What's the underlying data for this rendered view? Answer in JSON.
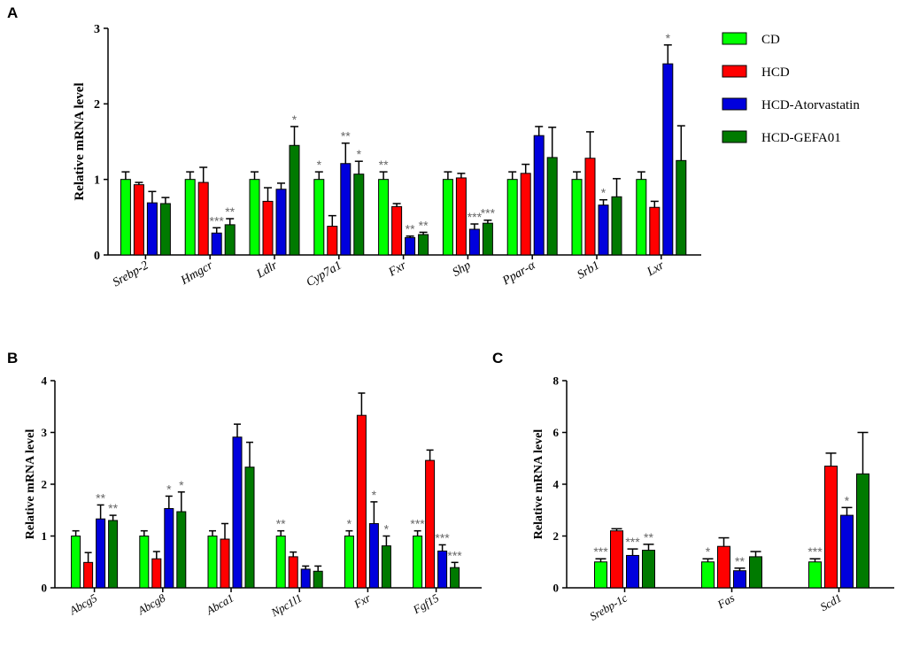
{
  "colors": {
    "CD": "#00ff00",
    "HCD": "#ff0000",
    "HCD-Atorvastatin": "#0000dd",
    "HCD-GEFA01": "#007a00"
  },
  "legend": {
    "items": [
      {
        "label": "CD",
        "color": "#00ff00"
      },
      {
        "label": "HCD",
        "color": "#ff0000"
      },
      {
        "label": "HCD-Atorvastatin",
        "color": "#0000dd"
      },
      {
        "label": "HCD-GEFA01",
        "color": "#007a00"
      }
    ]
  },
  "chart_data": [
    {
      "panel": "A",
      "type": "bar",
      "title": "",
      "ylabel": "Relative mRNA level",
      "xlabel": "",
      "ylim": [
        0,
        3
      ],
      "yticks": [
        0,
        1,
        2,
        3
      ],
      "categories": [
        "Srebp-2",
        "Hmgcr",
        "Ldlr",
        "Cyp7a1",
        "Fxr",
        "Shp",
        "Ppar-α",
        "Srb1",
        "Lxr"
      ],
      "series": [
        {
          "name": "CD",
          "values": [
            1.0,
            1.0,
            1.0,
            1.0,
            1.0,
            1.0,
            1.0,
            1.0,
            1.0
          ],
          "errors": [
            0.1,
            0.1,
            0.1,
            0.1,
            0.1,
            0.1,
            0.1,
            0.1,
            0.1
          ],
          "sig": [
            "",
            "",
            "",
            "*",
            "**",
            "",
            "",
            "",
            ""
          ]
        },
        {
          "name": "HCD",
          "values": [
            0.93,
            0.96,
            0.71,
            0.38,
            0.64,
            1.02,
            1.08,
            1.28,
            0.63
          ],
          "errors": [
            0.03,
            0.2,
            0.18,
            0.14,
            0.04,
            0.06,
            0.12,
            0.35,
            0.08
          ],
          "sig": [
            "",
            "",
            "",
            "",
            "",
            "",
            "",
            "",
            ""
          ]
        },
        {
          "name": "HCD-Atorvastatin",
          "values": [
            0.69,
            0.29,
            0.87,
            1.21,
            0.23,
            0.34,
            1.58,
            0.66,
            2.53
          ],
          "errors": [
            0.15,
            0.07,
            0.08,
            0.27,
            0.02,
            0.07,
            0.12,
            0.07,
            0.25
          ],
          "sig": [
            "",
            "***",
            "",
            "**",
            "**",
            "***",
            "",
            "*",
            "*"
          ]
        },
        {
          "name": "HCD-GEFA01",
          "values": [
            0.68,
            0.4,
            1.45,
            1.07,
            0.27,
            0.42,
            1.29,
            0.77,
            1.25
          ],
          "errors": [
            0.08,
            0.08,
            0.25,
            0.17,
            0.03,
            0.04,
            0.4,
            0.24,
            0.46
          ],
          "sig": [
            "",
            "**",
            "*",
            "*",
            "**",
            "***",
            "",
            "",
            ""
          ]
        }
      ]
    },
    {
      "panel": "B",
      "type": "bar",
      "title": "",
      "ylabel": "Relative mRNA level",
      "xlabel": "",
      "ylim": [
        0,
        4
      ],
      "yticks": [
        0,
        1,
        2,
        3,
        4
      ],
      "categories": [
        "Abcg5",
        "Abcg8",
        "Abca1",
        "Npc1l1",
        "Fxr",
        "Fgf15"
      ],
      "series": [
        {
          "name": "CD",
          "values": [
            1.0,
            1.0,
            1.0,
            1.0,
            1.0,
            1.0
          ],
          "errors": [
            0.1,
            0.1,
            0.1,
            0.1,
            0.1,
            0.1
          ],
          "sig": [
            "",
            "",
            "",
            "**",
            "*",
            "***"
          ]
        },
        {
          "name": "HCD",
          "values": [
            0.49,
            0.56,
            0.94,
            0.6,
            3.33,
            2.46
          ],
          "errors": [
            0.19,
            0.14,
            0.3,
            0.09,
            0.43,
            0.2
          ],
          "sig": [
            "",
            "",
            "",
            "",
            "",
            ""
          ]
        },
        {
          "name": "HCD-Atorvastatin",
          "values": [
            1.33,
            1.53,
            2.91,
            0.36,
            1.24,
            0.71
          ],
          "errors": [
            0.27,
            0.24,
            0.25,
            0.06,
            0.42,
            0.12
          ],
          "sig": [
            "**",
            "*",
            "",
            "",
            "*",
            "***"
          ]
        },
        {
          "name": "HCD-GEFA01",
          "values": [
            1.3,
            1.47,
            2.33,
            0.32,
            0.81,
            0.39
          ],
          "errors": [
            0.1,
            0.38,
            0.48,
            0.1,
            0.19,
            0.1
          ],
          "sig": [
            "**",
            "*",
            "",
            "",
            "*",
            "***"
          ]
        }
      ]
    },
    {
      "panel": "C",
      "type": "bar",
      "title": "",
      "ylabel": "Relative mRNA level",
      "xlabel": "",
      "ylim": [
        0,
        8
      ],
      "yticks": [
        0,
        2,
        4,
        6,
        8
      ],
      "categories": [
        "Srebp-1c",
        "Fas",
        "Scd1"
      ],
      "series": [
        {
          "name": "CD",
          "values": [
            1.0,
            1.0,
            1.0
          ],
          "errors": [
            0.12,
            0.12,
            0.12
          ],
          "sig": [
            "***",
            "*",
            "***"
          ]
        },
        {
          "name": "HCD",
          "values": [
            2.2,
            1.6,
            4.7
          ],
          "errors": [
            0.08,
            0.33,
            0.5
          ],
          "sig": [
            "",
            "",
            ""
          ]
        },
        {
          "name": "HCD-Atorvastatin",
          "values": [
            1.25,
            0.66,
            2.8
          ],
          "errors": [
            0.25,
            0.1,
            0.3
          ],
          "sig": [
            "***",
            "**",
            "*"
          ]
        },
        {
          "name": "HCD-GEFA01",
          "values": [
            1.45,
            1.2,
            4.4
          ],
          "errors": [
            0.23,
            0.2,
            1.6
          ],
          "sig": [
            "**",
            "",
            ""
          ]
        }
      ]
    }
  ],
  "panels": {
    "A": {
      "letter": "A"
    },
    "B": {
      "letter": "B"
    },
    "C": {
      "letter": "C"
    }
  }
}
